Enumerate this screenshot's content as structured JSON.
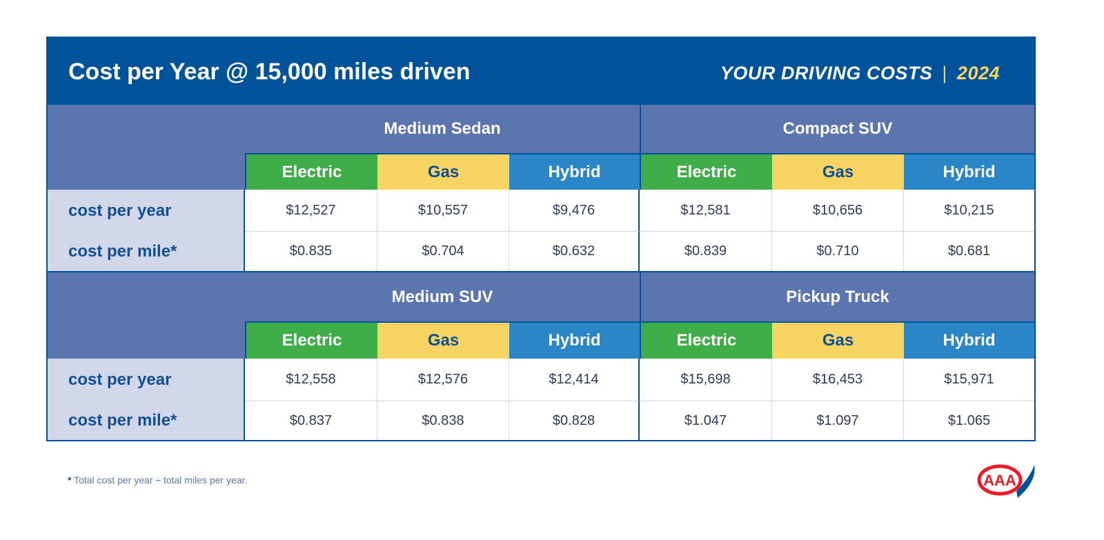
{
  "header": {
    "title": "Cost per Year @ 15,000 miles driven",
    "brand": "YOUR DRIVING COSTS",
    "separator": "|",
    "year": "2024"
  },
  "colors": {
    "header": "#00539b",
    "band": "#5b75ae",
    "label_bg": "#d3d7ea",
    "electric": "#3fae49",
    "gas": "#f8d462",
    "hybrid": "#2a86c7"
  },
  "chart_data": {
    "type": "table",
    "fuel_types": [
      "Electric",
      "Gas",
      "Hybrid"
    ],
    "row_labels": [
      "cost per year",
      "cost per mile*"
    ],
    "blocks": [
      {
        "categories": [
          {
            "name": "Medium Sedan",
            "cost_per_year": [
              "$12,527",
              "$10,557",
              "$9,476"
            ],
            "cost_per_mile": [
              "$0.835",
              "$0.704",
              "$0.632"
            ]
          },
          {
            "name": "Compact SUV",
            "cost_per_year": [
              "$12,581",
              "$10,656",
              "$10,215"
            ],
            "cost_per_mile": [
              "$0.839",
              "$0.710",
              "$0.681"
            ]
          }
        ]
      },
      {
        "categories": [
          {
            "name": "Medium SUV",
            "cost_per_year": [
              "$12,558",
              "$12,576",
              "$12,414"
            ],
            "cost_per_mile": [
              "$0.837",
              "$0.838",
              "$0.828"
            ]
          },
          {
            "name": "Pickup Truck",
            "cost_per_year": [
              "$15,698",
              "$16,453",
              "$15,971"
            ],
            "cost_per_mile": [
              "$1.047",
              "$1.097",
              "$1.065"
            ]
          }
        ]
      }
    ]
  },
  "footnote": {
    "mark": "*",
    "text": " Total cost per year ÷ total miles per year."
  },
  "logo": {
    "text": "AAA"
  }
}
